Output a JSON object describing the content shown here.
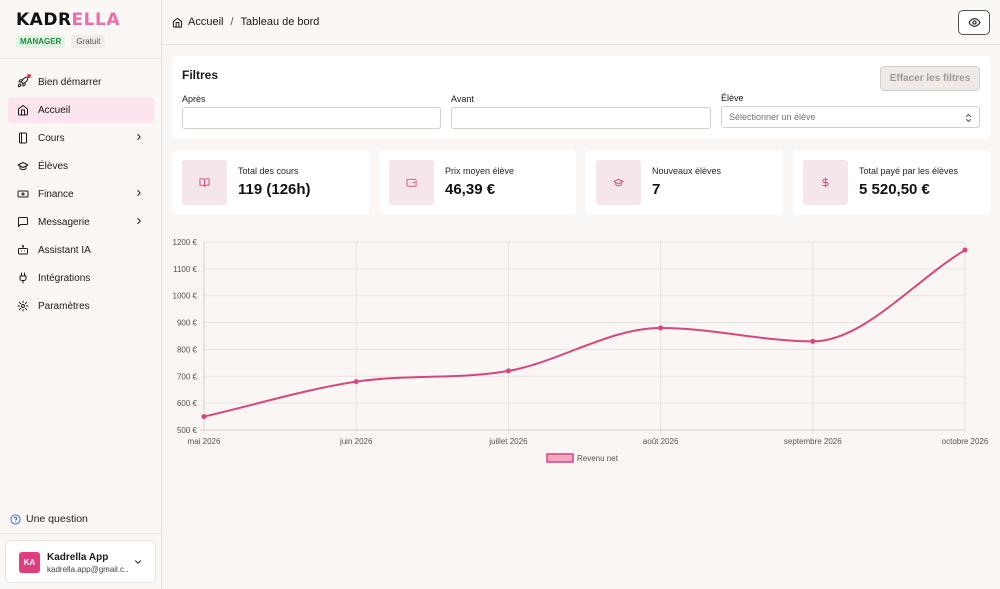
{
  "brand": {
    "part1": "KADR",
    "part2": "ELLA",
    "role_badge": "MANAGER",
    "plan_badge": "Gratuit"
  },
  "sidebar": {
    "items": [
      {
        "label": "Bien démarrer",
        "icon": "rocket-icon",
        "chevron": false,
        "notification": true
      },
      {
        "label": "Accueil",
        "icon": "home-icon",
        "chevron": false,
        "active": true
      },
      {
        "label": "Cours",
        "icon": "book-icon",
        "chevron": true
      },
      {
        "label": "Élèves",
        "icon": "graduation-cap-icon",
        "chevron": false
      },
      {
        "label": "Finance",
        "icon": "banknote-icon",
        "chevron": true
      },
      {
        "label": "Messagerie",
        "icon": "message-square-icon",
        "chevron": true
      },
      {
        "label": "Assistant IA",
        "icon": "bot-icon",
        "chevron": false
      },
      {
        "label": "Intégrations",
        "icon": "plug-icon",
        "chevron": false
      },
      {
        "label": "Paramètres",
        "icon": "settings-gear-icon",
        "chevron": false
      }
    ],
    "help_label": "Une question",
    "user": {
      "initials": "KA",
      "name": "Kadrella App",
      "email": "kadrella.app@gmail.c..."
    }
  },
  "header": {
    "breadcrumb_root": "Accueil",
    "breadcrumb_separator": "/",
    "breadcrumb_current": "Tableau de bord"
  },
  "filters": {
    "title": "Filtres",
    "clear_label": "Effacer les filtres",
    "after_label": "Après",
    "after_value": "",
    "before_label": "Avant",
    "before_value": "",
    "student_label": "Élève",
    "student_placeholder": "Sélectionner un élève"
  },
  "stats": [
    {
      "label": "Total des cours",
      "value": "119 (126h)",
      "icon": "book-open-icon"
    },
    {
      "label": "Prix moyen élève",
      "value": "46,39 €",
      "icon": "wallet-icon"
    },
    {
      "label": "Nouveaux élèves",
      "value": "7",
      "icon": "graduation-cap-icon"
    },
    {
      "label": "Total payé par les élèves",
      "value": "5 520,50 €",
      "icon": "dollar-icon"
    }
  ],
  "colors": {
    "accent": "#d9457f",
    "accent_fill": "#f1a7c4",
    "card_icon_bg": "#f5e6ec",
    "active_nav": "#fbe4ee"
  },
  "chart_data": {
    "type": "line",
    "categories": [
      "mai 2026",
      "juin 2026",
      "juillet 2026",
      "août 2026",
      "septembre 2026",
      "octobre 2026"
    ],
    "series": [
      {
        "name": "Revenu net",
        "values": [
          550,
          680,
          720,
          880,
          830,
          1170
        ]
      }
    ],
    "ylim": [
      500,
      1200
    ],
    "yticks": [
      500,
      600,
      700,
      800,
      900,
      1000,
      1100,
      1200
    ],
    "ytick_labels": [
      "500 €",
      "600 €",
      "700 €",
      "800 €",
      "900 €",
      "1000 €",
      "1100 €",
      "1200 €"
    ],
    "grid": true,
    "legend": "bottom"
  }
}
